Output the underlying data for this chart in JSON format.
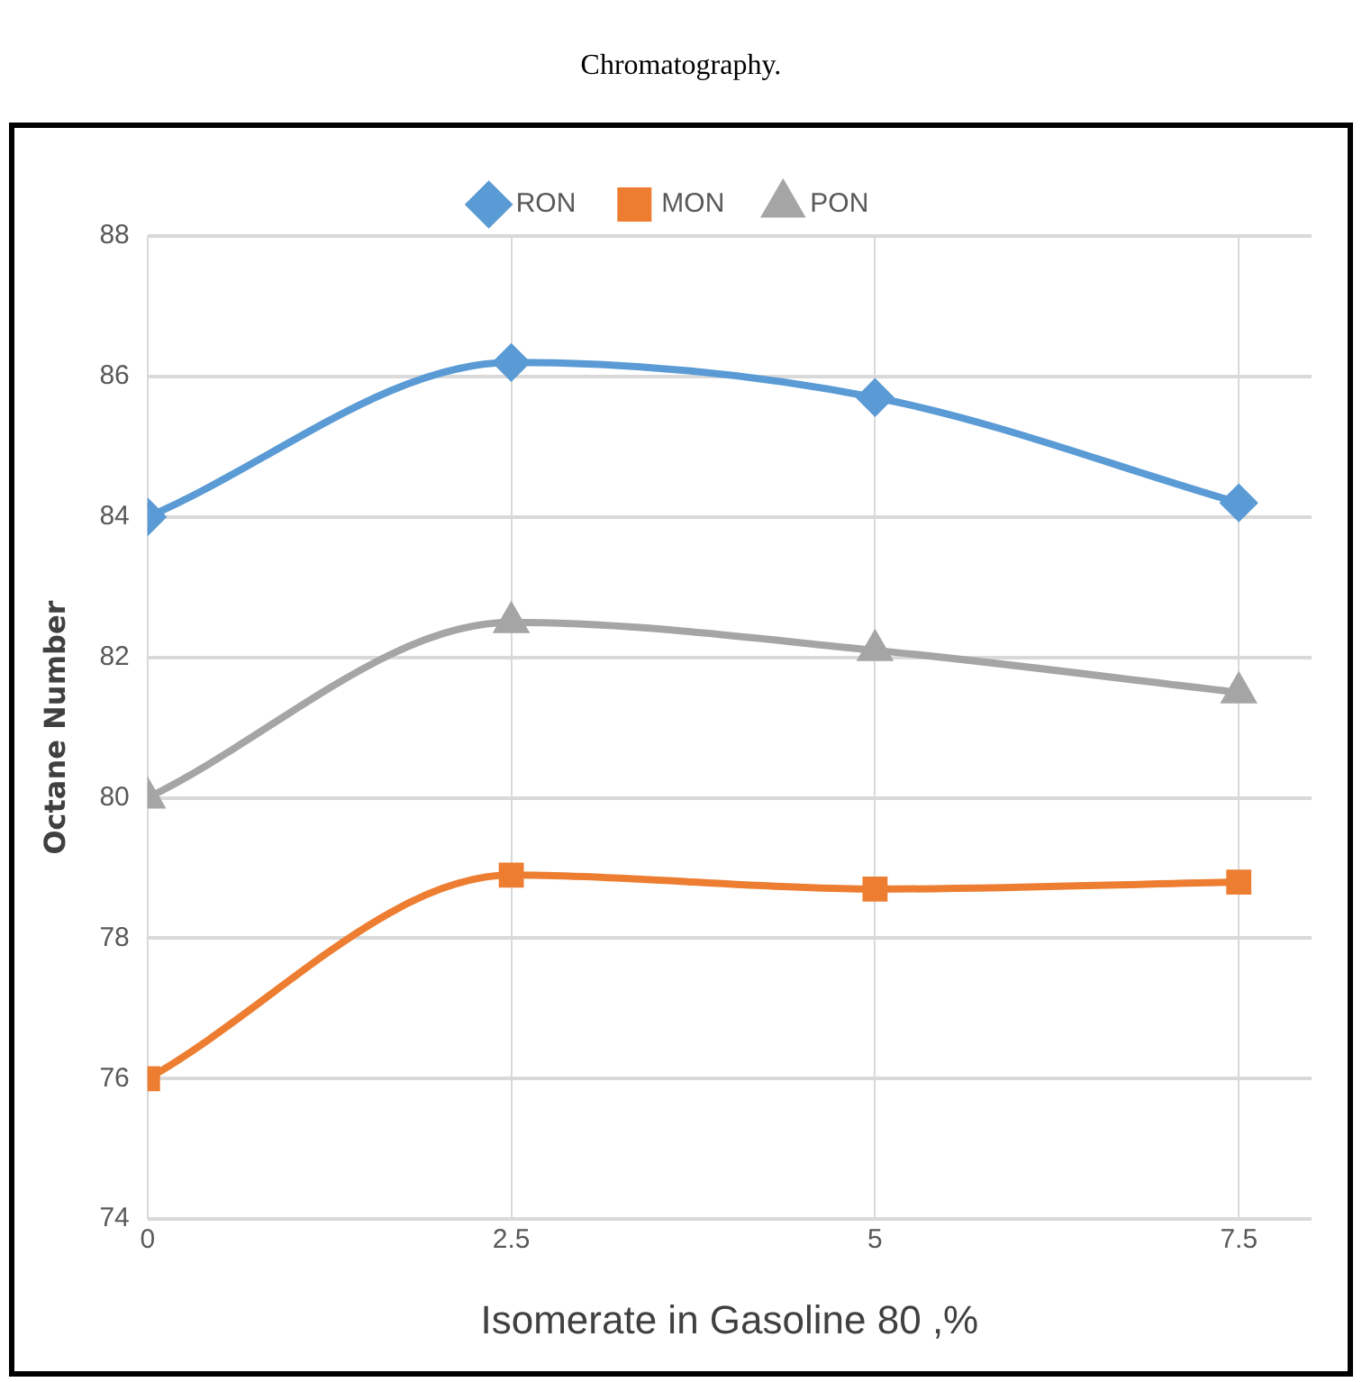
{
  "chart_data": {
    "type": "line",
    "annotations": [
      "Chromatography."
    ],
    "xlabel": "Isomerate in Gasoline 80 ,%",
    "ylabel": "Octane Number",
    "x": [
      0,
      2.5,
      5,
      7.5
    ],
    "xlim": [
      0,
      8
    ],
    "xticks": [
      0,
      2.5,
      5,
      7.5
    ],
    "ylim": [
      74,
      88
    ],
    "yticks": [
      74,
      76,
      78,
      80,
      82,
      84,
      86,
      88
    ],
    "grid": true,
    "legend": "top",
    "series": [
      {
        "name": "RON",
        "color": "#5b9bd5",
        "marker": "diamond",
        "values": [
          84.0,
          86.2,
          85.7,
          84.2
        ]
      },
      {
        "name": "MON",
        "color": "#ed7d31",
        "marker": "square",
        "values": [
          76.0,
          78.9,
          78.7,
          78.8
        ]
      },
      {
        "name": "PON",
        "color": "#a5a5a5",
        "marker": "triangle",
        "values": [
          80.0,
          82.5,
          82.1,
          81.5
        ]
      }
    ]
  }
}
